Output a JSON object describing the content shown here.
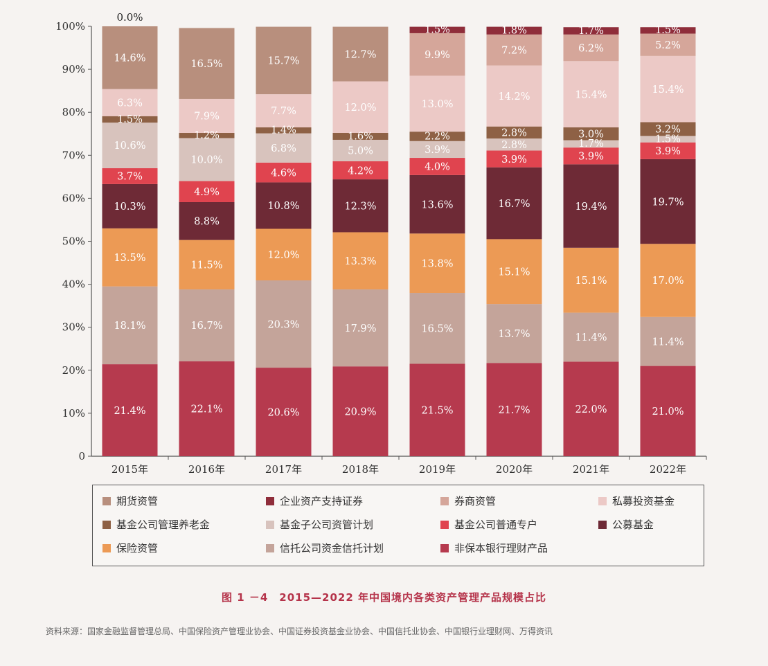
{
  "chart_data": {
    "type": "stacked-bar",
    "title": "",
    "xlabel": "",
    "ylabel": "",
    "ylim": [
      0,
      100
    ],
    "y_ticks": [
      "0",
      "10%",
      "20%",
      "30%",
      "40%",
      "50%",
      "60%",
      "70%",
      "80%",
      "90%",
      "100%"
    ],
    "categories": [
      "2015年",
      "2016年",
      "2017年",
      "2018年",
      "2019年",
      "2020年",
      "2021年",
      "2022年"
    ],
    "series": [
      {
        "name": "非保本银行理财产品",
        "color": "#b63a4e",
        "values": [
          21.4,
          22.1,
          20.6,
          20.9,
          21.5,
          21.7,
          22.0,
          21.0
        ],
        "labels": [
          "21.4%",
          "22.1%",
          "20.6%",
          "20.9%",
          "21.5%",
          "21.7%",
          "22.0%",
          "21.0%"
        ]
      },
      {
        "name": "信托公司资金信托计划",
        "color": "#c4a49a",
        "values": [
          18.1,
          16.7,
          20.3,
          17.9,
          16.5,
          13.7,
          11.4,
          11.4
        ],
        "labels": [
          "18.1%",
          "16.7%",
          "20.3%",
          "17.9%",
          "16.5%",
          "13.7%",
          "11.4%",
          "11.4%"
        ]
      },
      {
        "name": "保险资管",
        "color": "#ec9a55",
        "values": [
          13.5,
          11.5,
          12.0,
          13.3,
          13.8,
          15.1,
          15.1,
          17.0
        ],
        "labels": [
          "13.5%",
          "11.5%",
          "12.0%",
          "13.3%",
          "13.8%",
          "15.1%",
          "15.1%",
          "17.0%"
        ]
      },
      {
        "name": "公募基金",
        "color": "#6e2a36",
        "values": [
          10.3,
          8.8,
          10.8,
          12.3,
          13.6,
          16.7,
          19.4,
          19.7
        ],
        "labels": [
          "10.3%",
          "8.8%",
          "10.8%",
          "12.3%",
          "13.6%",
          "16.7%",
          "19.4%",
          "19.7%"
        ]
      },
      {
        "name": "基金公司普通专户",
        "color": "#e0444f",
        "values": [
          3.7,
          4.9,
          4.6,
          4.2,
          4.0,
          3.9,
          3.9,
          3.9
        ],
        "labels": [
          "3.7%",
          "4.9%",
          "4.6%",
          "4.2%",
          "4.0%",
          "3.9%",
          "3.9%",
          "3.9%"
        ]
      },
      {
        "name": "基金子公司资管计划",
        "color": "#d8c3bd",
        "values": [
          10.6,
          10.0,
          6.8,
          5.0,
          3.9,
          2.8,
          1.7,
          1.5
        ],
        "labels": [
          "10.6%",
          "10.0%",
          "6.8%",
          "5.0%",
          "3.9%",
          "2.8%",
          "1.7%",
          "1.5%"
        ]
      },
      {
        "name": "基金公司管理养老金",
        "color": "#8e6145",
        "values": [
          1.5,
          1.2,
          1.4,
          1.6,
          2.2,
          2.8,
          3.0,
          3.2
        ],
        "labels": [
          "1.5%",
          "1.2%",
          "1.4%",
          "1.6%",
          "2.2%",
          "2.8%",
          "3.0%",
          "3.2%"
        ]
      },
      {
        "name": "私募投资基金",
        "color": "#ecc9c6",
        "values": [
          6.3,
          7.9,
          7.7,
          12.0,
          13.0,
          14.2,
          15.4,
          15.4
        ],
        "labels": [
          "6.3%",
          "7.9%",
          "7.7%",
          "12.0%",
          "13.0%",
          "14.2%",
          "15.4%",
          "15.4%"
        ]
      },
      {
        "name": "券商资管",
        "color": "#d5a69a",
        "values": [
          0,
          0,
          0,
          0,
          9.9,
          7.2,
          6.2,
          5.2
        ],
        "labels": [
          "",
          "",
          "",
          "",
          "9.9%",
          "7.2%",
          "6.2%",
          "5.2%"
        ]
      },
      {
        "name": "期货资管",
        "color": "#b88f7d",
        "values": [
          14.6,
          16.5,
          15.7,
          12.7,
          0,
          0,
          0,
          0
        ],
        "labels": [
          "14.6%",
          "16.5%",
          "15.7%",
          "12.7%",
          "",
          "",
          "",
          ""
        ]
      },
      {
        "name": "企业资产支持证券",
        "color": "#8f2d3a",
        "values": [
          0,
          0,
          0,
          0,
          1.5,
          1.8,
          1.7,
          1.5
        ],
        "labels": [
          "",
          "",
          "",
          "",
          "1.5%",
          "1.8%",
          "1.7%",
          "1.5%"
        ]
      }
    ],
    "annotations": [
      {
        "category": "2015年",
        "text": "0.0%"
      }
    ],
    "legend": {
      "placement": "bottom",
      "rows": [
        [
          "期货资管",
          "企业资产支持证券",
          "券商资管",
          "私募投资基金"
        ],
        [
          "基金公司管理养老金",
          "基金子公司资管计划",
          "基金公司普通专户",
          "公募基金"
        ],
        [
          "保险资管",
          "信托公司资金信托计划",
          "非保本银行理财产品"
        ]
      ]
    },
    "grid": false
  },
  "figure": {
    "caption": "图 1 －4　2015—2022 年中国境内各类资产管理产品规模占比",
    "source": "资料来源：国家金融监督管理总局、中国保险资产管理业协会、中国证券投资基金业协会、中国信托业协会、中国银行业理财网、万得资讯"
  }
}
